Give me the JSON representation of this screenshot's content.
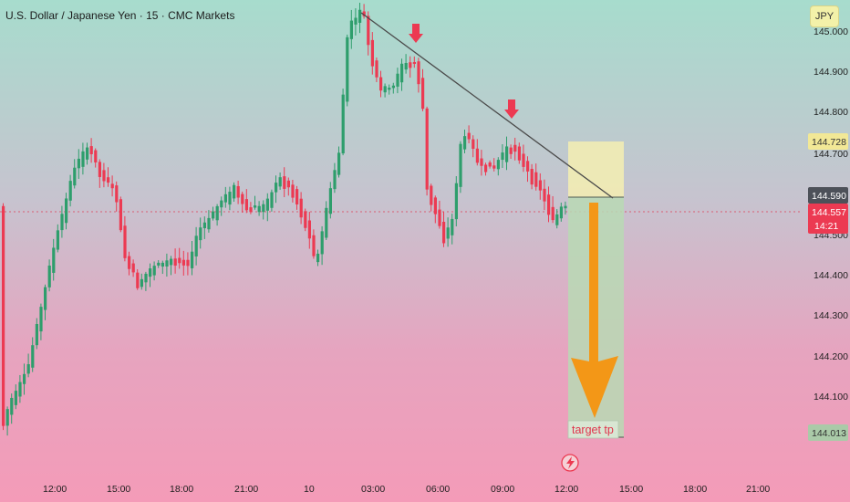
{
  "header": {
    "title": "U.S. Dollar / Japanese Yen · 15 · CMC Markets",
    "currency": "JPY"
  },
  "chart_data": {
    "type": "candlestick",
    "y_ticks": [
      "144.400",
      "144.300",
      "144.200",
      "144.100"
    ],
    "y_ticks_partial": [
      "144.900",
      "144.800",
      "144.700",
      "144.500",
      "145.000"
    ],
    "ylim": [
      143.96,
      145.03
    ],
    "x_ticks": [
      "12:00",
      "15:00",
      "18:00",
      "21:00",
      "10",
      "03:00",
      "06:00",
      "09:00",
      "12:00",
      "15:00",
      "18:00",
      "21:00"
    ],
    "price_tags": {
      "entry_top": "144.728",
      "entry_bottom": "144.590",
      "current_price": "144.557",
      "countdown": "14:21",
      "target": "144.013"
    },
    "trade_setup": {
      "direction": "short",
      "entry_zone": [
        144.59,
        144.728
      ],
      "target": 144.013,
      "target_label": "target tp"
    },
    "trendline": {
      "from": 145.01,
      "to": 144.59
    },
    "colors": {
      "up": "#2e9e6c",
      "down": "#ec3a52",
      "arrow": "#f6940f"
    }
  }
}
